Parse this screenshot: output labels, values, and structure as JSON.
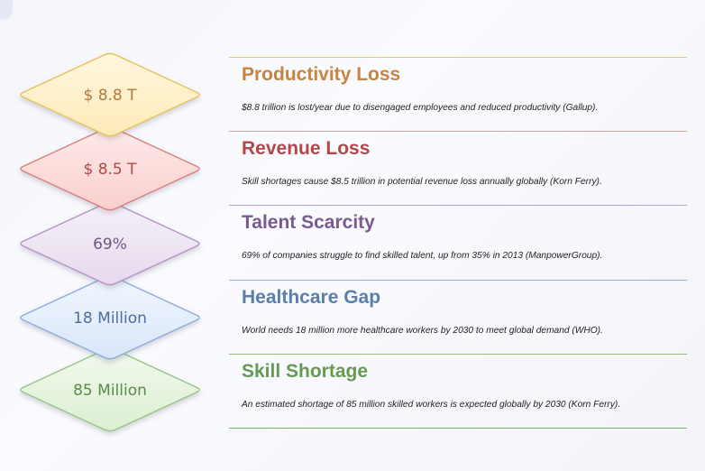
{
  "items": [
    {
      "value": "$ 8.8 T",
      "title": "Productivity Loss",
      "description": "$8.8 trillion is lost/year due to disengaged employees and reduced productivity (Gallup).",
      "colors": {
        "fill_top": "#fff6de",
        "fill_bottom": "#fdeab8",
        "stroke": "#e9c15a",
        "value": "#b0793d",
        "title": "#c8833f",
        "rule": "#e6c774"
      }
    },
    {
      "value": "$ 8.5 T",
      "title": "Revenue Loss",
      "description": "Skill shortages cause $8.5 trillion in potential revenue loss annually globally (Korn Ferry).",
      "colors": {
        "fill_top": "#feeae9",
        "fill_bottom": "#f9cfcd",
        "stroke": "#d9807c",
        "value": "#b04a49",
        "title": "#b4474a",
        "rule": "#e2a0a0"
      }
    },
    {
      "value": "69%",
      "title": "Talent Scarcity",
      "description": "69% of companies struggle to find skilled talent, up from 35% in 2013 (ManpowerGroup).",
      "colors": {
        "fill_top": "#f6f0f9",
        "fill_bottom": "#e6daed",
        "stroke": "#b294c4",
        "value": "#6d5683",
        "title": "#7a5a8e",
        "rule": "#b9a2c6"
      }
    },
    {
      "value": "18 Million",
      "title": "Healthcare Gap",
      "description": "World needs 18 million more healthcare workers by 2030 to meet global demand (WHO).",
      "colors": {
        "fill_top": "#f1f6fe",
        "fill_bottom": "#d9e6f9",
        "stroke": "#8dadde",
        "value": "#4d6f9a",
        "title": "#5a7fad",
        "rule": "#95aed2"
      }
    },
    {
      "value": "85 Million",
      "title": "Skill Shortage",
      "description": "An estimated shortage of 85 million skilled workers is expected globally by 2030 (Korn Ferry).",
      "colors": {
        "fill_top": "#f2f9ee",
        "fill_bottom": "#dcefd2",
        "stroke": "#94c781",
        "value": "#5b8a4a",
        "title": "#669a52",
        "rule": "#8fbe7d"
      }
    }
  ]
}
